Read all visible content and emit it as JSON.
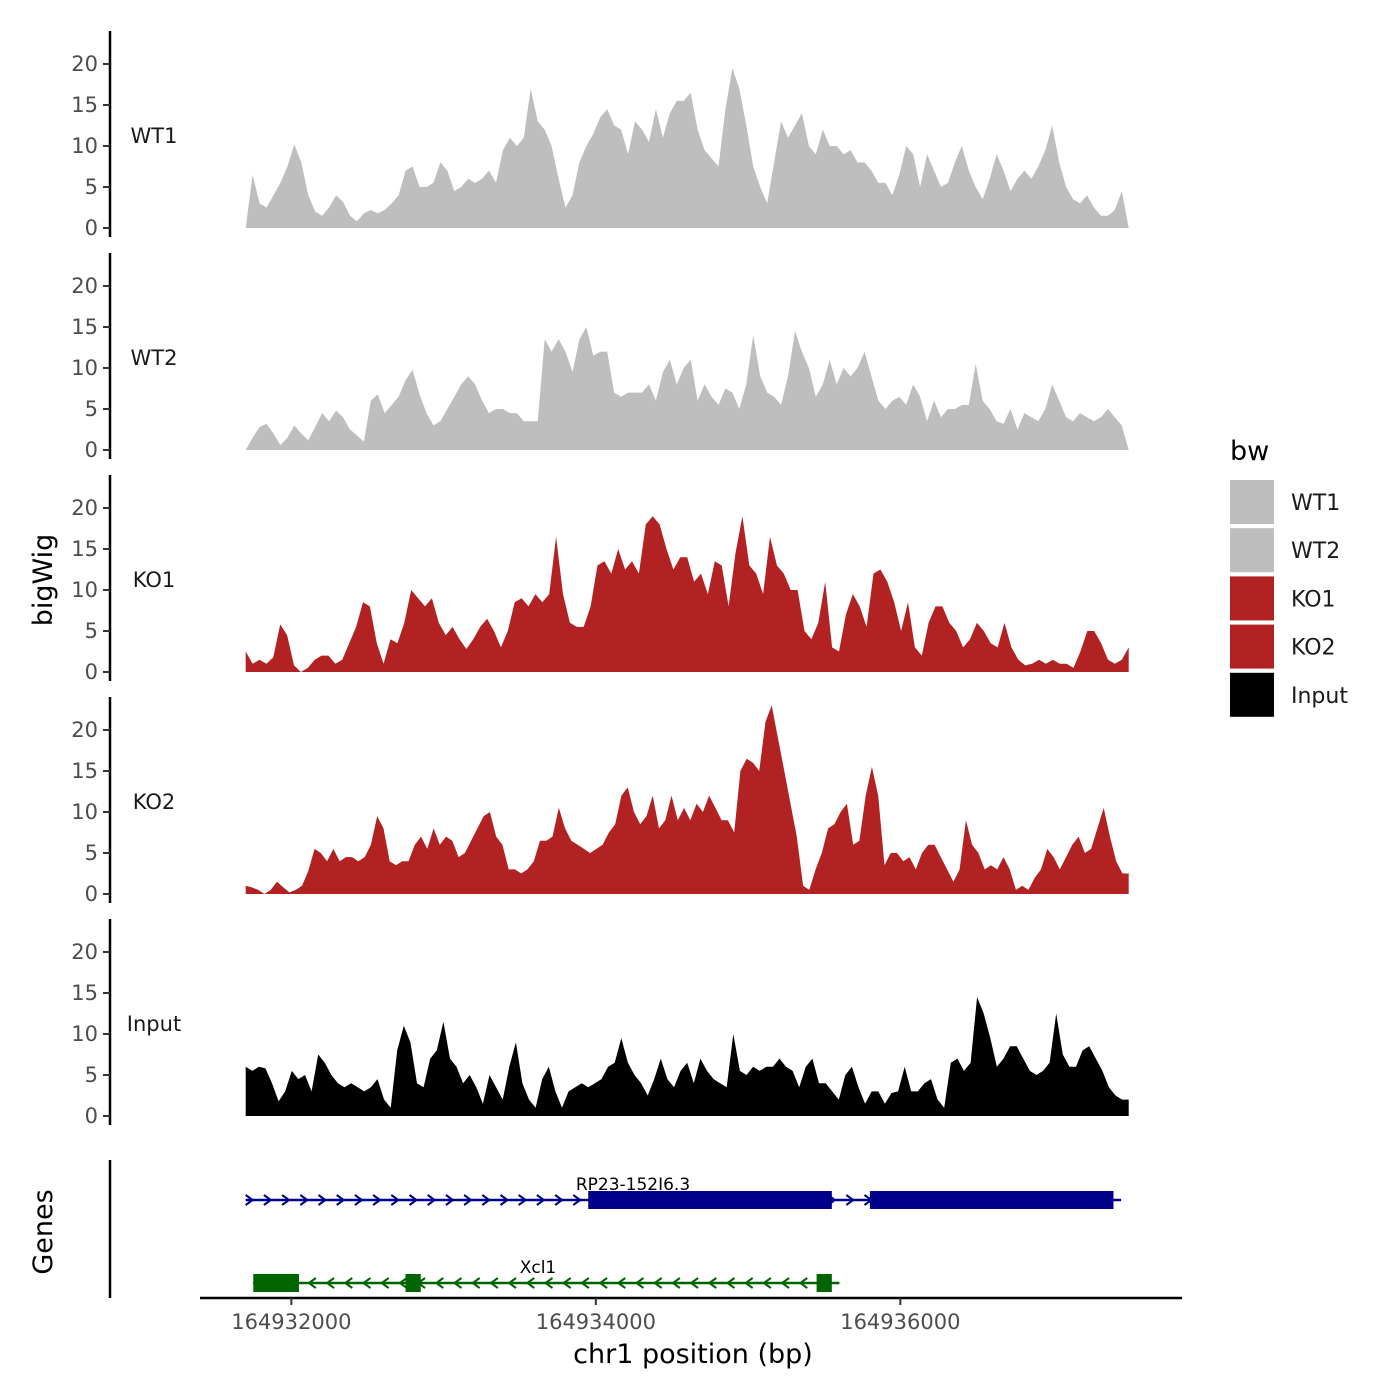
{
  "chart_data": {
    "type": "area",
    "ylabel": "bigWig",
    "xlabel": "chr1 position (bp)",
    "ylim": [
      0,
      24
    ],
    "y_ticks": [
      0,
      5,
      10,
      15,
      20
    ],
    "xlim": [
      164931400,
      164937850
    ],
    "x_ticks": [
      164932000,
      164934000,
      164936000
    ],
    "x_tick_labels": [
      "164932000",
      "164934000",
      "164936000"
    ],
    "region_start": 164931700,
    "region_end": 164937500,
    "legend": {
      "title": "bw",
      "entries": [
        {
          "name": "WT1",
          "color": "#bebebe"
        },
        {
          "name": "WT2",
          "color": "#bebebe"
        },
        {
          "name": "KO1",
          "color": "#b22222"
        },
        {
          "name": "KO2",
          "color": "#b22222"
        },
        {
          "name": "Input",
          "color": "#000000"
        }
      ]
    },
    "series": [
      {
        "name": "WT1",
        "color": "#bebebe",
        "values": [
          0,
          6.5,
          3,
          2.5,
          4,
          5.5,
          7.5,
          10.2,
          8,
          4,
          2,
          1.5,
          2.5,
          4,
          3.2,
          1.5,
          0.8,
          1.8,
          2.2,
          1.8,
          2.2,
          3,
          4,
          7,
          7.5,
          5,
          5,
          5.5,
          8,
          7,
          4.5,
          5,
          6,
          5.5,
          6,
          7,
          5.5,
          9.5,
          11,
          10,
          11,
          17,
          13,
          12,
          10,
          6,
          2.5,
          4,
          8,
          10,
          11.5,
          13.5,
          14.5,
          12.5,
          12,
          9,
          13,
          12,
          10.5,
          14.5,
          11,
          14,
          15.5,
          15.5,
          16.5,
          12,
          9.5,
          8.5,
          7.5,
          14.5,
          19.5,
          17,
          12.5,
          7.5,
          5,
          3,
          8,
          13,
          11,
          12.5,
          14,
          10,
          9,
          12,
          10,
          10,
          9,
          9.5,
          8,
          8,
          7,
          5.5,
          5.5,
          4,
          6.5,
          10,
          9,
          5,
          9,
          7,
          5,
          5.5,
          8,
          10,
          7,
          5,
          3.5,
          6,
          9,
          7,
          4.5,
          6,
          7,
          6,
          7.5,
          9.5,
          12.5,
          8,
          5,
          3.5,
          3,
          4,
          2.5,
          1.5,
          1.5,
          2.2,
          4.5,
          0
        ]
      },
      {
        "name": "WT2",
        "color": "#bebebe",
        "values": [
          0,
          1.5,
          2.8,
          3.2,
          2,
          0.6,
          1.5,
          3,
          2,
          1.2,
          2.8,
          4.5,
          3.5,
          4.8,
          4,
          2.5,
          1.8,
          1,
          6,
          6.8,
          4.5,
          5.5,
          6.5,
          8.5,
          9.8,
          6.8,
          4.5,
          3,
          3.5,
          5,
          6.5,
          8,
          9,
          8,
          6,
          4.5,
          5,
          5,
          4.5,
          4.5,
          3.5,
          3.5,
          3.5,
          13.5,
          12,
          13.5,
          12,
          9.5,
          13.5,
          15,
          11.5,
          12,
          12,
          7,
          6.5,
          7,
          7,
          7,
          8,
          6,
          9.5,
          11,
          8,
          10,
          11,
          6,
          8,
          6.5,
          5.5,
          7.5,
          7,
          5,
          8,
          14,
          9,
          7,
          6.5,
          5.5,
          9,
          14.5,
          12,
          10,
          6.5,
          8,
          11,
          8,
          10,
          9,
          10,
          12,
          9,
          6,
          5,
          6,
          6.5,
          5.5,
          8,
          6.5,
          3.5,
          6,
          4,
          5,
          5,
          5.5,
          5.5,
          10.5,
          6,
          5,
          3.5,
          3.2,
          5,
          2.5,
          4.5,
          4,
          3.5,
          5,
          8,
          6,
          4,
          3.5,
          4.5,
          4,
          3.5,
          4,
          5,
          4,
          3,
          0
        ]
      },
      {
        "name": "KO1",
        "color": "#b22222",
        "values": [
          2.5,
          1,
          1.5,
          1,
          1.8,
          5.8,
          4.5,
          0.8,
          0,
          0.5,
          1.5,
          2,
          2,
          1,
          1.5,
          3.5,
          5.5,
          8.5,
          8,
          3.5,
          1,
          4,
          3.5,
          6,
          10,
          9,
          8,
          9,
          6,
          4.5,
          5.5,
          4,
          2.8,
          4,
          5.5,
          6.5,
          5,
          3,
          5,
          8.5,
          9,
          8,
          9.5,
          8.5,
          9.5,
          16.5,
          9.5,
          6,
          5.5,
          5.5,
          8,
          13,
          13.5,
          12,
          15,
          12.5,
          13.5,
          12,
          18,
          19,
          18,
          15,
          12.5,
          14,
          14,
          11,
          12,
          9.5,
          13.5,
          13,
          8,
          14.5,
          19,
          13,
          12,
          9.5,
          16.5,
          13,
          12,
          10,
          10,
          5,
          4,
          6,
          11,
          3,
          2.5,
          7,
          9.5,
          8,
          5.5,
          12,
          12.5,
          11,
          8.5,
          5,
          8.5,
          3,
          2,
          6,
          8,
          8,
          6,
          5,
          3,
          4,
          6,
          5,
          3.5,
          3,
          6,
          3,
          1.5,
          0.8,
          1,
          1.5,
          1,
          1.5,
          1,
          1,
          0.5,
          2.5,
          5,
          5,
          3.5,
          1.5,
          1,
          1.5,
          3
        ]
      },
      {
        "name": "KO2",
        "color": "#b22222",
        "values": [
          1,
          0.8,
          0.5,
          0,
          0.5,
          1.5,
          0.8,
          0.2,
          0.5,
          1,
          2.8,
          5.5,
          5,
          4,
          5.5,
          4,
          4.5,
          4.5,
          4,
          4.5,
          6,
          9.5,
          8,
          4,
          3.5,
          4,
          4,
          6,
          7,
          5.5,
          8,
          6,
          7,
          6.5,
          4.5,
          5,
          6.5,
          8,
          9.5,
          10,
          7,
          6,
          3,
          3,
          2.5,
          3,
          4,
          6.5,
          6.5,
          7,
          10.5,
          8,
          6.5,
          6,
          5.5,
          5,
          5.5,
          6,
          7.5,
          8.5,
          12,
          13,
          10,
          8.5,
          9.5,
          12,
          8,
          9,
          12,
          9,
          10.5,
          9,
          11,
          10,
          12,
          10.5,
          9,
          9,
          7.5,
          15,
          16.5,
          16,
          15,
          21,
          23,
          19,
          15,
          11,
          7,
          1,
          0.5,
          3,
          5,
          8,
          8.5,
          10,
          11,
          6,
          6.5,
          12,
          15.5,
          12,
          3.5,
          5,
          5,
          4,
          4.5,
          3,
          5,
          6,
          6,
          4.5,
          3,
          1.5,
          3,
          9,
          6,
          5,
          3,
          3.5,
          3,
          4.5,
          3,
          0.5,
          1,
          0.5,
          2,
          3,
          5.5,
          4.5,
          3,
          4.5,
          6,
          7,
          5,
          5.5,
          8,
          10.5,
          7,
          4,
          2.5,
          2.5
        ]
      },
      {
        "name": "Input",
        "color": "#000000",
        "values": [
          6,
          5.5,
          6,
          5.8,
          4,
          1.8,
          3,
          5.5,
          4.5,
          5,
          3,
          7.5,
          6.5,
          5,
          4,
          3.5,
          4,
          3.5,
          3,
          3.5,
          4.5,
          2,
          1,
          8,
          11,
          9,
          4,
          3.5,
          7,
          8,
          11.5,
          7,
          6,
          4,
          5,
          3.5,
          1.5,
          5,
          3.5,
          2,
          6,
          9,
          4,
          2,
          1,
          4.5,
          6,
          3,
          1,
          3,
          3.5,
          4,
          3.5,
          4,
          4.5,
          6,
          6.5,
          9.5,
          6.5,
          5,
          4,
          2.5,
          4.5,
          7,
          4.5,
          3.5,
          5.5,
          6.5,
          4,
          7,
          5.5,
          4.5,
          4,
          3.5,
          10,
          5.5,
          5,
          6,
          5.5,
          6,
          6,
          7,
          6,
          5.5,
          3.5,
          6,
          7,
          4,
          4,
          3,
          2,
          5,
          6,
          3.5,
          1.5,
          3,
          3,
          1.5,
          2.8,
          3,
          6,
          3,
          3,
          4,
          4.5,
          2,
          1,
          6.5,
          7,
          5.5,
          6.5,
          14.5,
          12.5,
          9.5,
          6,
          7,
          8.5,
          8.5,
          7,
          5.5,
          5,
          5.5,
          6.5,
          12.5,
          7.5,
          6,
          6,
          8,
          8.5,
          7,
          5.5,
          3.5,
          2.5,
          2,
          2
        ]
      }
    ],
    "genes": [
      {
        "name": "RP23-152I6.3",
        "strand": "+",
        "color": "#00008b",
        "start": 164931700,
        "end": 164937450,
        "exons": [
          [
            164933950,
            164935550
          ],
          [
            164935800,
            164937400
          ]
        ]
      },
      {
        "name": "Xcl1",
        "strand": "-",
        "color": "#006400",
        "start": 164931750,
        "end": 164935600,
        "exons": [
          [
            164931750,
            164932050
          ],
          [
            164932750,
            164932850
          ],
          [
            164935450,
            164935550
          ]
        ]
      }
    ],
    "genes_label": "Genes"
  }
}
